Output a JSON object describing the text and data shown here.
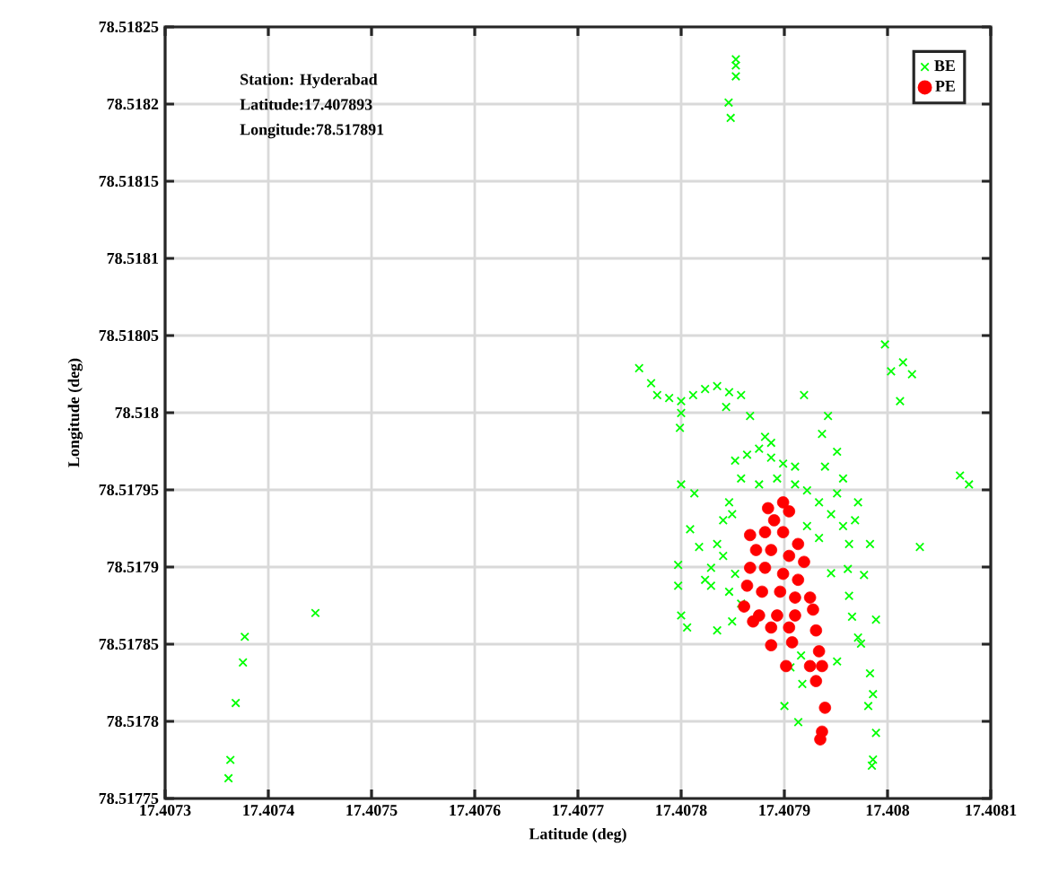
{
  "chart_data": {
    "type": "scatter",
    "xlabel": "Latitude (deg)",
    "ylabel": "Longitude (deg)",
    "annotations": [
      "Station: Hyderabad",
      "Latitude:17.407893",
      "Longitude:78.517891"
    ],
    "xlim": [
      17.4073,
      17.4081
    ],
    "ylim": [
      78.51775,
      78.51825
    ],
    "xticks": [
      17.4073,
      17.4074,
      17.4075,
      17.4076,
      17.4077,
      17.4078,
      17.4079,
      17.408,
      17.4081
    ],
    "yticks": [
      78.51775,
      78.5178,
      78.51785,
      78.5179,
      78.51795,
      78.518,
      78.51805,
      78.5181,
      78.51815,
      78.5182,
      78.51825
    ],
    "grid": true,
    "legend": "top right",
    "series": [
      {
        "name": "BE",
        "color": "#00ff00",
        "marker": "cross",
        "x": [
          17.4077593,
          17.4077709,
          17.4077768,
          17.4077884,
          17.4078,
          17.4078,
          17.4077988,
          17.4078116,
          17.4078232,
          17.4078349,
          17.4078465,
          17.4078581,
          17.4078668,
          17.4078436,
          17.4079191,
          17.4079423,
          17.4079365,
          17.4079511,
          17.4079394,
          17.4079569,
          17.4079511,
          17.4079714,
          17.4079685,
          17.407983,
          17.4079975,
          17.408015,
          17.4080237,
          17.4080034,
          17.4080121,
          17.4080702,
          17.4080789,
          17.4080313,
          17.4078,
          17.4078128,
          17.4078087,
          17.4078174,
          17.4077971,
          17.4077971,
          17.4078,
          17.4078058,
          17.4078349,
          17.4078494,
          17.407829,
          17.4079059,
          17.4079174,
          17.4079001,
          17.4079135,
          17.4079162,
          17.4079511,
          17.4079453,
          17.4079615,
          17.4079772,
          17.4079627,
          17.4079656,
          17.4079714,
          17.4079888,
          17.4079743,
          17.407983,
          17.4079859,
          17.4079813,
          17.4079888,
          17.4079859,
          17.4079848,
          17.4078523,
          17.4078639,
          17.4078755,
          17.4078872,
          17.4078988,
          17.4079104,
          17.4078581,
          17.4078755,
          17.407893,
          17.4079104,
          17.407922,
          17.4079336,
          17.4079453,
          17.4079569,
          17.4079627,
          17.4079336,
          17.407922,
          17.4078465,
          17.4078407,
          17.4078349,
          17.4078407,
          17.4078523,
          17.4078465,
          17.4078581,
          17.407829,
          17.4078232,
          17.4078872,
          17.4078813,
          17.4078494,
          17.407853,
          17.407853,
          17.407853,
          17.407846,
          17.407848,
          17.4073772,
          17.4073754,
          17.4073684,
          17.4073632,
          17.4073614,
          17.4074456
        ],
        "values": [
          78.5180288,
          78.5180191,
          78.5180114,
          78.5180095,
          78.5180075,
          78.5179998,
          78.5179902,
          78.5180114,
          78.5180153,
          78.5180172,
          78.5180133,
          78.5180114,
          78.5179979,
          78.5180037,
          78.5180114,
          78.5179979,
          78.5179863,
          78.5179747,
          78.5179651,
          78.5179574,
          78.5179477,
          78.5179419,
          78.5179303,
          78.5179149,
          78.5180442,
          78.5180326,
          78.5180249,
          78.5180268,
          78.5180075,
          78.5179593,
          78.5179535,
          78.517913,
          78.5179535,
          78.5179477,
          78.5179245,
          78.517913,
          78.5179014,
          78.5178879,
          78.5178686,
          78.5178608,
          78.5178589,
          78.5178647,
          78.5178879,
          78.517835,
          78.5178242,
          78.5178099,
          78.5177995,
          78.5178427,
          78.5178388,
          78.517896,
          78.5178987,
          78.5178948,
          78.5178813,
          78.5178678,
          78.5178543,
          78.5178659,
          78.5178504,
          78.5178311,
          78.5178176,
          78.5178099,
          78.5177925,
          78.5177752,
          78.5177713,
          78.5179689,
          78.5179728,
          78.5179767,
          78.5179709,
          78.517967,
          78.5179651,
          78.5179574,
          78.5179535,
          78.5179574,
          78.5179535,
          78.5179496,
          78.5179419,
          78.5179342,
          78.5179265,
          78.5179149,
          78.5179188,
          78.5179265,
          78.5179419,
          78.5179303,
          78.5179149,
          78.5179072,
          78.5178956,
          78.517884,
          78.5178763,
          78.5178995,
          78.5178917,
          78.5179805,
          78.5179844,
          78.5179342,
          78.518229,
          78.518225,
          78.518218,
          78.518201,
          78.518191,
          78.5178548,
          78.5178381,
          78.5178119,
          78.517775,
          78.5177631,
          78.5178702
        ]
      },
      {
        "name": "PE",
        "color": "#ff0000",
        "marker": "circle",
        "x": [
          17.4078842,
          17.4078988,
          17.4079046,
          17.4078901,
          17.4078668,
          17.4078813,
          17.4078988,
          17.4079133,
          17.4078726,
          17.4078872,
          17.4079046,
          17.4079191,
          17.4078668,
          17.4078813,
          17.4078988,
          17.4079133,
          17.4078639,
          17.4078784,
          17.4078959,
          17.4079104,
          17.4079249,
          17.407861,
          17.4078755,
          17.407893,
          17.4079104,
          17.4079278,
          17.4078697,
          17.4078872,
          17.4079046,
          17.4079307,
          17.4078872,
          17.4079075,
          17.4079017,
          17.4079336,
          17.4079249,
          17.4079365,
          17.4079307,
          17.4079394,
          17.4079365,
          17.4079348
        ],
        "values": [
          78.5179381,
          78.5179419,
          78.5179361,
          78.5179303,
          78.5179207,
          78.5179226,
          78.5179226,
          78.5179149,
          78.517911,
          78.517911,
          78.5179072,
          78.5179033,
          78.5178995,
          78.5178995,
          78.5178956,
          78.5178917,
          78.5178879,
          78.517884,
          78.517884,
          78.5178802,
          78.5178802,
          78.5178744,
          78.5178686,
          78.5178686,
          78.5178686,
          78.5178724,
          78.5178647,
          78.5178608,
          78.5178608,
          78.5178589,
          78.5178493,
          78.5178512,
          78.5178358,
          78.5178454,
          78.5178358,
          78.5178358,
          78.5178261,
          78.5178088,
          78.5177933,
          78.5177883
        ]
      }
    ]
  }
}
